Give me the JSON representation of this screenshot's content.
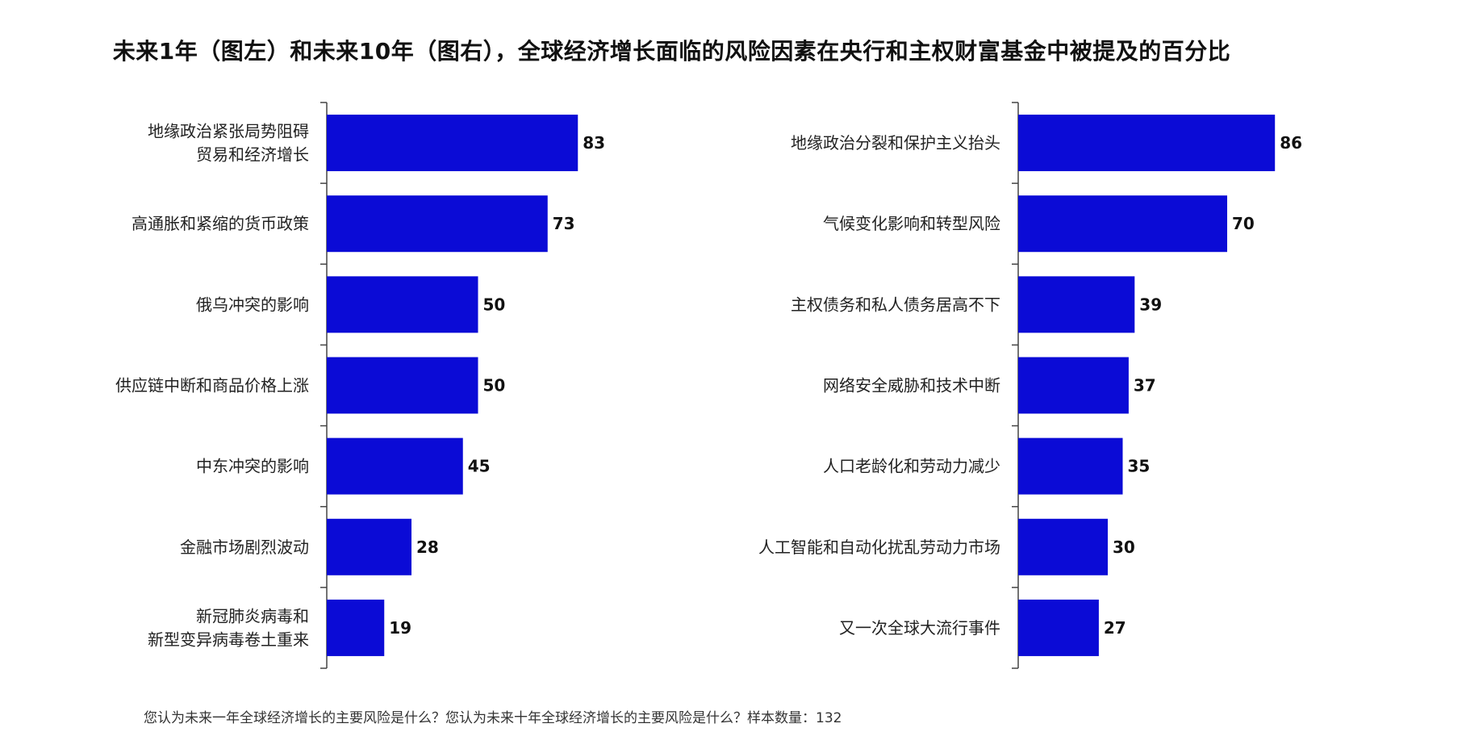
{
  "title": "未来1年（图左）和未来10年（图右），全球经济增长面临的风险因素在央行和主权财富基金中被提及的百分比",
  "footnote": "您认为未来一年全球经济增长的主要风险是什么？您认为未来十年全球经济增长的主要风险是什么？样本数量：132",
  "colors": {
    "bar": "#0b0bd6",
    "axis": "#444444"
  },
  "chart_data": [
    {
      "type": "bar",
      "orientation": "horizontal",
      "title": "",
      "xlabel": "",
      "ylabel": "",
      "xlim": [
        0,
        100
      ],
      "categories": [
        [
          "地缘政治紧张局势阻碍",
          "贸易和经济增长"
        ],
        [
          "高通胀和紧缩的货币政策"
        ],
        [
          "俄乌冲突的影响"
        ],
        [
          "供应链中断和商品价格上涨"
        ],
        [
          "中东冲突的影响"
        ],
        [
          "金融市场剧烈波动"
        ],
        [
          "新冠肺炎病毒和",
          "新型变异病毒卷土重来"
        ]
      ],
      "values": [
        83,
        73,
        50,
        50,
        45,
        28,
        19
      ]
    },
    {
      "type": "bar",
      "orientation": "horizontal",
      "title": "",
      "xlabel": "",
      "ylabel": "",
      "xlim": [
        0,
        100
      ],
      "categories": [
        [
          "地缘政治分裂和保护主义抬头"
        ],
        [
          "气候变化影响和转型风险"
        ],
        [
          "主权债务和私人债务居高不下"
        ],
        [
          "网络安全威胁和技术中断"
        ],
        [
          "人口老龄化和劳动力减少"
        ],
        [
          "人工智能和自动化扰乱劳动力市场"
        ],
        [
          "又一次全球大流行事件"
        ]
      ],
      "values": [
        86,
        70,
        39,
        37,
        35,
        30,
        27
      ]
    }
  ]
}
